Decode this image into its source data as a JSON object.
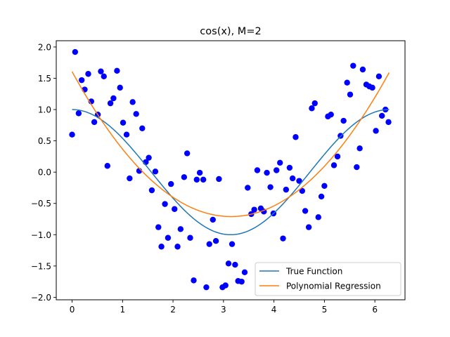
{
  "chart_data": {
    "type": "scatter",
    "title": "cos(x), M=2",
    "xlabel": "",
    "ylabel": "",
    "xlim": [
      -0.314,
      6.597
    ],
    "ylim": [
      -2.04,
      2.1
    ],
    "x_ticks": [
      0,
      1,
      2,
      3,
      4,
      5,
      6
    ],
    "x_tick_labels": [
      "0",
      "1",
      "2",
      "3",
      "4",
      "5",
      "6"
    ],
    "y_ticks": [
      -2.0,
      -1.5,
      -1.0,
      -0.5,
      0.0,
      0.5,
      1.0,
      1.5,
      2.0
    ],
    "y_tick_labels": [
      "−2.0",
      "−1.5",
      "−1.0",
      "−0.5",
      "0.0",
      "0.5",
      "1.0",
      "1.5",
      "2.0"
    ],
    "grid": false,
    "legend_position": "lower-right",
    "scatter": {
      "color": "#0000ff",
      "points": [
        [
          0.0,
          0.6
        ],
        [
          0.06,
          1.92
        ],
        [
          0.13,
          0.94
        ],
        [
          0.19,
          1.47
        ],
        [
          0.25,
          1.32
        ],
        [
          0.32,
          1.57
        ],
        [
          0.38,
          1.13
        ],
        [
          0.44,
          0.8
        ],
        [
          0.51,
          0.92
        ],
        [
          0.57,
          1.61
        ],
        [
          0.63,
          1.53
        ],
        [
          0.7,
          0.1
        ],
        [
          0.76,
          1.1
        ],
        [
          0.82,
          1.18
        ],
        [
          0.89,
          1.62
        ],
        [
          0.95,
          1.35
        ],
        [
          1.01,
          0.79
        ],
        [
          1.08,
          0.6
        ],
        [
          1.14,
          -0.1
        ],
        [
          1.2,
          1.12
        ],
        [
          1.27,
          0.93
        ],
        [
          1.33,
          0.02
        ],
        [
          1.39,
          0.7
        ],
        [
          1.46,
          0.16
        ],
        [
          1.52,
          0.23
        ],
        [
          1.58,
          -0.29
        ],
        [
          1.65,
          0.01
        ],
        [
          1.71,
          -0.88
        ],
        [
          1.77,
          -1.19
        ],
        [
          1.84,
          -0.51
        ],
        [
          1.9,
          -1.05
        ],
        [
          1.96,
          -0.19
        ],
        [
          2.03,
          -0.59
        ],
        [
          2.09,
          -1.19
        ],
        [
          2.15,
          -0.91
        ],
        [
          2.22,
          -0.08
        ],
        [
          2.28,
          0.3
        ],
        [
          2.34,
          -1.05
        ],
        [
          2.41,
          -1.73
        ],
        [
          2.47,
          -0.12
        ],
        [
          2.53,
          -0.01
        ],
        [
          2.6,
          -0.12
        ],
        [
          2.66,
          -1.84
        ],
        [
          2.72,
          -1.15
        ],
        [
          2.79,
          -0.76
        ],
        [
          2.85,
          -1.1
        ],
        [
          2.91,
          -0.11
        ],
        [
          2.98,
          -1.84
        ],
        [
          3.04,
          -1.81
        ],
        [
          3.1,
          -1.46
        ],
        [
          3.17,
          -1.15
        ],
        [
          3.23,
          -1.48
        ],
        [
          3.29,
          -1.74
        ],
        [
          3.36,
          -1.75
        ],
        [
          3.42,
          -1.6
        ],
        [
          3.48,
          -0.25
        ],
        [
          3.55,
          -0.67
        ],
        [
          3.61,
          -0.6
        ],
        [
          3.67,
          0.03
        ],
        [
          3.74,
          -0.58
        ],
        [
          3.8,
          -0.63
        ],
        [
          3.86,
          -0.01
        ],
        [
          3.93,
          -0.24
        ],
        [
          3.99,
          -0.66
        ],
        [
          4.05,
          0.03
        ],
        [
          4.12,
          0.15
        ],
        [
          4.18,
          -1.06
        ],
        [
          4.24,
          -0.28
        ],
        [
          4.31,
          0.07
        ],
        [
          4.37,
          -0.1
        ],
        [
          4.43,
          0.56
        ],
        [
          4.5,
          -0.14
        ],
        [
          4.56,
          -0.3
        ],
        [
          4.62,
          -0.62
        ],
        [
          4.69,
          -0.88
        ],
        [
          4.75,
          1.02
        ],
        [
          4.81,
          1.1
        ],
        [
          4.88,
          -0.72
        ],
        [
          4.94,
          -0.39
        ],
        [
          5.0,
          -0.22
        ],
        [
          5.07,
          0.89
        ],
        [
          5.13,
          0.92
        ],
        [
          5.19,
          0.11
        ],
        [
          5.26,
          0.25
        ],
        [
          5.32,
          0.58
        ],
        [
          5.38,
          0.82
        ],
        [
          5.45,
          1.43
        ],
        [
          5.51,
          1.24
        ],
        [
          5.57,
          1.7
        ],
        [
          5.64,
          0.08
        ],
        [
          5.7,
          0.38
        ],
        [
          5.76,
          1.64
        ],
        [
          5.83,
          1.4
        ],
        [
          5.89,
          1.37
        ],
        [
          5.95,
          1.35
        ],
        [
          6.02,
          0.66
        ],
        [
          6.08,
          1.53
        ],
        [
          6.14,
          0.9
        ],
        [
          6.21,
          1.0
        ],
        [
          6.27,
          0.8
        ]
      ]
    },
    "series": [
      {
        "name": "True Function",
        "color": "#1f77b4",
        "function": "cos",
        "x_range": [
          0,
          6.283
        ]
      },
      {
        "name": "Polynomial Regression",
        "color": "#ff7f0e",
        "function": "quadratic",
        "coefficients": [
          1.606,
          -1.472,
          0.2339
        ],
        "x_range": [
          0,
          6.283
        ]
      }
    ]
  }
}
